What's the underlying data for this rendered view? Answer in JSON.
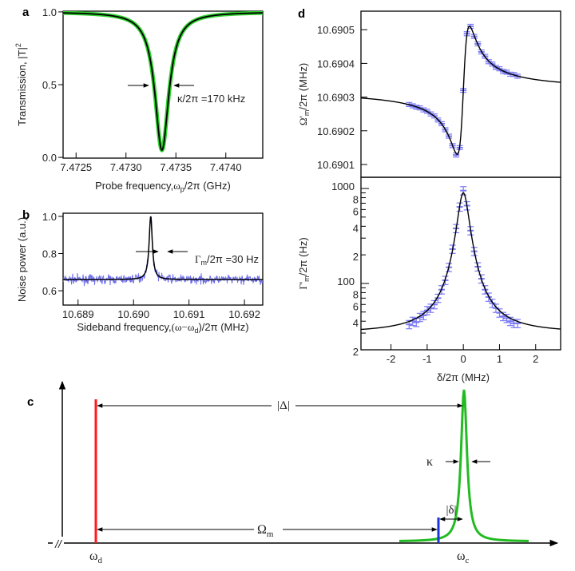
{
  "panel_labels": {
    "a": "a",
    "b": "b",
    "c": "c",
    "d": "d"
  },
  "colors": {
    "fit": "#000000",
    "transmission_data": "#2fd12f",
    "noise_data": "#7070ee",
    "d_data": "#7a7af2",
    "drive": "#ff1a1a",
    "cavity": "#22bb22",
    "probe": "#1a33dd"
  },
  "chart_data": [
    {
      "id": "a",
      "type": "line",
      "ylabel": "Transmission, |T|",
      "ylabel_sup": "2",
      "xlabel_pre": "Probe frequency,",
      "xlabel_sym": "ω",
      "xlabel_sub": "p",
      "xlabel_post": "/2π (GHz)",
      "xlim": [
        7.47237,
        7.47437
      ],
      "ylim": [
        -0.005,
        1.005
      ],
      "xticks": [
        {
          "v": 7.4725,
          "t": "7.4725"
        },
        {
          "v": 7.473,
          "t": "7.4730"
        },
        {
          "v": 7.4735,
          "t": "7.4735"
        },
        {
          "v": 7.474,
          "t": "7.4740"
        }
      ],
      "yticks": [
        {
          "v": 0,
          "t": "0.0"
        },
        {
          "v": 0.5,
          "t": "0.5"
        },
        {
          "v": 1,
          "t": "1.0"
        }
      ],
      "lorentzian_dip": {
        "center": 7.47336,
        "fwhm": 0.00017,
        "depth": 0.95,
        "baseline": 1.0
      },
      "annotation": "κ/2π =170 kHz"
    },
    {
      "id": "b",
      "type": "line",
      "ylabel": "Noise power (a.u.)",
      "xlabel_pre": "Sideband frequency,",
      "xlabel_sym": "(ω−ω",
      "xlabel_sub": "d",
      "xlabel_post": ")/2π (MHz)",
      "xlim": [
        10.68873,
        10.69233
      ],
      "ylim": [
        0.523,
        1.017
      ],
      "xticks": [
        {
          "v": 10.689,
          "t": "10.689"
        },
        {
          "v": 10.69,
          "t": "10.690"
        },
        {
          "v": 10.691,
          "t": "10.691"
        },
        {
          "v": 10.692,
          "t": "10.692"
        }
      ],
      "yticks": [
        {
          "v": 0.6,
          "t": "0.6"
        },
        {
          "v": 0.8,
          "t": "0.8"
        },
        {
          "v": 1.0,
          "t": "1.0"
        }
      ],
      "lorentzian_peak": {
        "center": 10.69031,
        "fwhm": 7e-05,
        "height": 0.34,
        "baseline": 0.66
      },
      "noise_std": 0.012,
      "annotation_sym": "Γ",
      "annotation_sub": "m",
      "annotation_post": "/2π =30 Hz"
    },
    {
      "id": "d-top",
      "type": "scatter",
      "ylabel_sym": "Ω'",
      "ylabel_sub": "m",
      "ylabel_post": "/2π (MHz)",
      "xlim": [
        -2.83,
        2.69
      ],
      "ylim": [
        10.690062,
        10.690555
      ],
      "yticks": [
        {
          "v": 10.6901,
          "t": "10.6901"
        },
        {
          "v": 10.6902,
          "t": "10.6902"
        },
        {
          "v": 10.6903,
          "t": "10.6903"
        },
        {
          "v": 10.6904,
          "t": "10.6904"
        },
        {
          "v": 10.6905,
          "t": "10.6905"
        }
      ],
      "delta": [
        -1.5,
        -1.4,
        -1.3,
        -1.2,
        -1.1,
        -1.0,
        -0.9,
        -0.8,
        -0.7,
        -0.6,
        -0.5,
        -0.4,
        -0.3,
        -0.2,
        -0.1,
        0.0,
        0.1,
        0.2,
        0.3,
        0.4,
        0.5,
        0.6,
        0.7,
        0.8,
        0.9,
        1.0,
        1.1,
        1.2,
        1.3,
        1.4,
        1.5
      ],
      "values": [
        10.690278,
        10.690274,
        10.69027,
        10.690268,
        10.690262,
        10.690258,
        10.69025,
        10.690244,
        10.690232,
        10.690221,
        10.690203,
        10.690184,
        10.690156,
        10.690128,
        10.69015,
        10.69032,
        10.690488,
        10.69051,
        10.69048,
        10.690458,
        10.690434,
        10.690421,
        10.690405,
        10.690398,
        10.690388,
        10.690384,
        10.690376,
        10.690374,
        10.690368,
        10.690367,
        10.690362
      ],
      "error": 6e-06,
      "fit": {
        "baseline": 10.69032,
        "amplitude": 6.46e-05,
        "width": 0.17
      }
    },
    {
      "id": "d-bottom",
      "type": "scatter",
      "yscale": "log",
      "ylabel_sym": "Γ'",
      "ylabel_sub": "m",
      "ylabel_post": "/2π (Hz)",
      "xlabel": "δ/2π (MHz)",
      "xlim": [
        -2.83,
        2.69
      ],
      "ylim": [
        20,
        1312
      ],
      "xticks": [
        {
          "v": -2,
          "t": "-2"
        },
        {
          "v": -1,
          "t": "-1"
        },
        {
          "v": 0,
          "t": "0"
        },
        {
          "v": 1,
          "t": "1"
        },
        {
          "v": 2,
          "t": "2"
        }
      ],
      "yticks": [
        {
          "v": 20,
          "t": "2"
        },
        {
          "v": 40,
          "t": "4"
        },
        {
          "v": 60,
          "t": "6"
        },
        {
          "v": 80,
          "t": "8"
        },
        {
          "v": 100,
          "t": "100"
        },
        {
          "v": 200,
          "t": "2"
        },
        {
          "v": 400,
          "t": "4"
        },
        {
          "v": 600,
          "t": "6"
        },
        {
          "v": 800,
          "t": "8"
        },
        {
          "v": 1000,
          "t": "1000"
        }
      ],
      "delta": [
        -1.5,
        -1.4,
        -1.3,
        -1.2,
        -1.1,
        -1.0,
        -0.9,
        -0.8,
        -0.7,
        -0.6,
        -0.5,
        -0.4,
        -0.3,
        -0.2,
        -0.1,
        0.0,
        0.1,
        0.2,
        0.3,
        0.4,
        0.5,
        0.6,
        0.7,
        0.8,
        0.9,
        1.0,
        1.1,
        1.2,
        1.3,
        1.4,
        1.5
      ],
      "values": [
        37,
        40,
        39,
        44,
        46,
        52,
        55,
        60,
        70,
        86,
        108,
        148,
        230,
        380,
        640,
        950,
        660,
        360,
        218,
        150,
        112,
        86,
        72,
        62,
        55,
        49,
        45,
        43,
        40,
        38,
        38
      ],
      "rel_error": 0.1,
      "fit": {
        "baseline": 30,
        "amplitude": 870,
        "width": 0.16
      }
    }
  ],
  "diagram_c": {
    "delta_label": "|Δ|",
    "kappa_label": "κ",
    "small_delta_label": "|δ|",
    "omega_m_sym": "Ω",
    "omega_m_sub": "m",
    "omega_d_sym": "ω",
    "omega_d_sub": "d",
    "omega_c_sym": "ω",
    "omega_c_sub": "c",
    "axis_break": "//"
  }
}
